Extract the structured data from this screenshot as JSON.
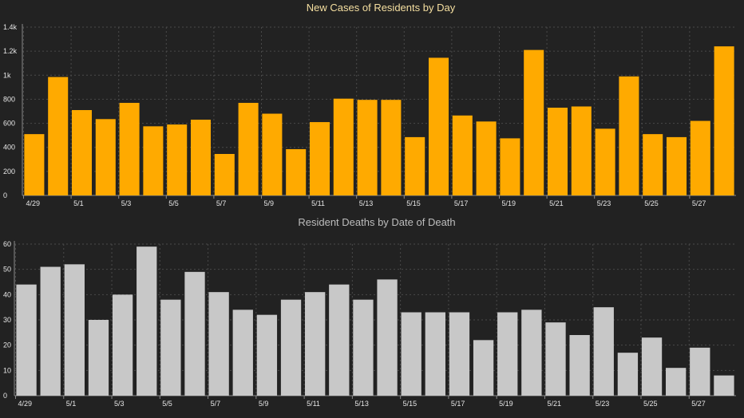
{
  "chart_data": [
    {
      "type": "bar",
      "title": "New Cases of Residents by Day",
      "xlabel": "",
      "ylabel": "",
      "ylim": [
        0,
        1400
      ],
      "yticks": [
        0,
        200,
        400,
        600,
        800,
        1000,
        1200,
        1400
      ],
      "ytick_labels": [
        "0",
        "200",
        "400",
        "600",
        "800",
        "1k",
        "1.2k",
        "1.4k"
      ],
      "grid": true,
      "categories": [
        "4/29",
        "4/30",
        "5/1",
        "5/2",
        "5/3",
        "5/4",
        "5/5",
        "5/6",
        "5/7",
        "5/8",
        "5/9",
        "5/10",
        "5/11",
        "5/12",
        "5/13",
        "5/14",
        "5/15",
        "5/16",
        "5/17",
        "5/18",
        "5/19",
        "5/20",
        "5/21",
        "5/22",
        "5/23",
        "5/24",
        "5/25",
        "5/26",
        "5/27",
        "5/28"
      ],
      "x_tick_labels": [
        "4/29",
        "5/1",
        "5/3",
        "5/5",
        "5/7",
        "5/9",
        "5/11",
        "5/13",
        "5/15",
        "5/17",
        "5/19",
        "5/21",
        "5/23",
        "5/25",
        "5/27"
      ],
      "values": [
        510,
        985,
        710,
        635,
        770,
        575,
        590,
        630,
        345,
        770,
        680,
        385,
        610,
        805,
        795,
        795,
        485,
        1145,
        665,
        615,
        475,
        1210,
        730,
        740,
        555,
        990,
        510,
        485,
        620,
        1240
      ],
      "color": "#ffaa00",
      "title_color": "#f5dfa0"
    },
    {
      "type": "bar",
      "title": "Resident Deaths by Date of Death",
      "xlabel": "",
      "ylabel": "",
      "ylim": [
        0,
        60
      ],
      "yticks": [
        0,
        10,
        20,
        30,
        40,
        50,
        60
      ],
      "ytick_labels": [
        "0",
        "10",
        "20",
        "30",
        "40",
        "50",
        "60"
      ],
      "grid": true,
      "categories": [
        "4/29",
        "4/30",
        "5/1",
        "5/2",
        "5/3",
        "5/4",
        "5/5",
        "5/6",
        "5/7",
        "5/8",
        "5/9",
        "5/10",
        "5/11",
        "5/12",
        "5/13",
        "5/14",
        "5/15",
        "5/16",
        "5/17",
        "5/18",
        "5/19",
        "5/20",
        "5/21",
        "5/22",
        "5/23",
        "5/24",
        "5/25",
        "5/26",
        "5/27",
        "5/28"
      ],
      "x_tick_labels": [
        "4/29",
        "5/1",
        "5/3",
        "5/5",
        "5/7",
        "5/9",
        "5/11",
        "5/13",
        "5/15",
        "5/17",
        "5/19",
        "5/21",
        "5/23",
        "5/25",
        "5/27"
      ],
      "values": [
        44,
        51,
        52,
        30,
        40,
        59,
        38,
        49,
        41,
        34,
        32,
        38,
        41,
        44,
        38,
        46,
        33,
        33,
        33,
        22,
        33,
        34,
        29,
        24,
        35,
        17,
        23,
        11,
        19,
        8
      ],
      "color": "#c8c8c8",
      "title_color": "#bdbdbd"
    }
  ]
}
